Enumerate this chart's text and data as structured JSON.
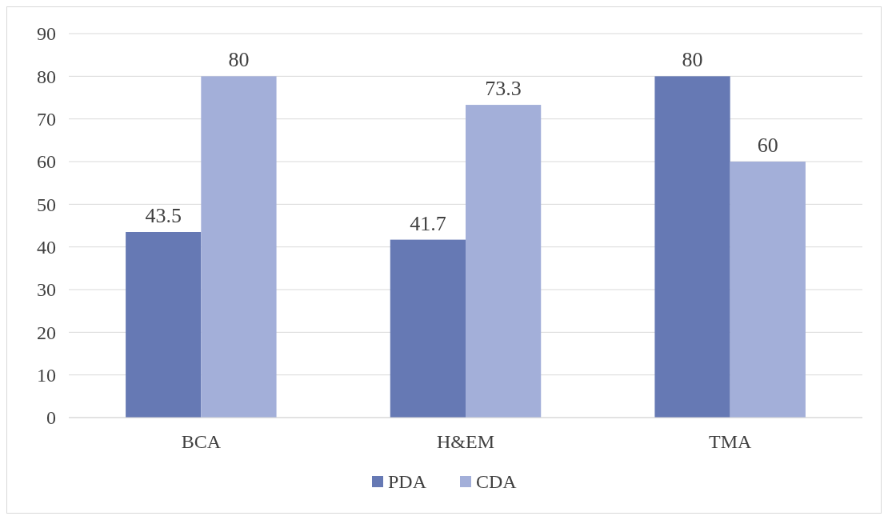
{
  "chart_data": {
    "type": "bar",
    "categories": [
      "BCA",
      "H&EM",
      "TMA"
    ],
    "series": [
      {
        "name": "PDA",
        "color": "#6679b4",
        "values": [
          43.5,
          41.7,
          80
        ]
      },
      {
        "name": "CDA",
        "color": "#a3afd9",
        "values": [
          80,
          73.3,
          60
        ]
      }
    ],
    "ylim": [
      0,
      90
    ],
    "yticks": [
      0,
      10,
      20,
      30,
      40,
      50,
      60,
      70,
      80,
      90
    ],
    "grid": "y",
    "legend": "bottom",
    "data_labels": true
  }
}
